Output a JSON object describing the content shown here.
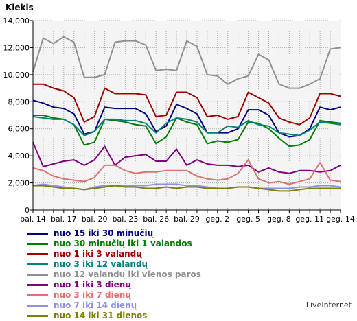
{
  "chart_data": {
    "type": "line",
    "ylabel": "Kiekis",
    "ylim": [
      0,
      14000
    ],
    "yticks": [
      "0",
      "2,000",
      "4,000",
      "6,000",
      "8,000",
      "10,000",
      "12,000",
      "14,000"
    ],
    "x": [
      "bal. 14",
      "bal. 15",
      "bal. 16",
      "bal. 17",
      "bal. 18",
      "bal. 19",
      "bal. 20",
      "bal. 21",
      "bal. 22",
      "bal. 23",
      "bal. 24",
      "bal. 25",
      "bal. 26",
      "bal. 27",
      "bal. 28",
      "bal. 29",
      "bal. 30",
      "geg. 1",
      "geg. 2",
      "geg. 3",
      "geg. 4",
      "geg. 5",
      "geg. 6",
      "geg. 7",
      "geg. 8",
      "geg. 9",
      "geg. 10",
      "geg. 11",
      "geg. 12",
      "geg. 13",
      "geg. 14"
    ],
    "xtick_labels": [
      "bal. 14",
      "bal. 17",
      "bal. 20",
      "bal. 23",
      "bal. 26",
      "bal. 29",
      "geg. 2",
      "geg. 5",
      "geg. 8",
      "geg. 11",
      "geg. 14"
    ],
    "grid": true,
    "legend_position": "bottom",
    "series": [
      {
        "name": "nuo 15 iki 30 minučių",
        "color": "#000080",
        "values": [
          8100,
          7900,
          7600,
          7500,
          7100,
          5600,
          5800,
          7600,
          7500,
          7500,
          7500,
          7100,
          5800,
          6200,
          7800,
          7500,
          7100,
          5700,
          5700,
          5700,
          6000,
          7400,
          7400,
          7000,
          5700,
          5400,
          5500,
          6000,
          7600,
          7400,
          7600
        ]
      },
      {
        "name": "nuo 30 minučių iki 1 valandos",
        "color": "#008000",
        "values": [
          7000,
          7000,
          6800,
          6700,
          6300,
          4800,
          5000,
          6700,
          6600,
          6500,
          6300,
          6200,
          4900,
          5400,
          6800,
          6500,
          6300,
          4900,
          5100,
          5000,
          5200,
          6500,
          6400,
          6000,
          5300,
          4700,
          4800,
          5200,
          6600,
          6500,
          6400
        ]
      },
      {
        "name": "nuo 1 iki 3 valandų",
        "color": "#a00000",
        "values": [
          9300,
          9300,
          9000,
          8800,
          8300,
          6500,
          6900,
          9000,
          8600,
          8600,
          8600,
          8500,
          6900,
          7000,
          8700,
          8700,
          8300,
          6900,
          7000,
          6700,
          6900,
          8700,
          8300,
          7900,
          6800,
          6500,
          6300,
          6800,
          8600,
          8600,
          8400
        ]
      },
      {
        "name": "nuo 3 iki 12 valandų",
        "color": "#008080",
        "values": [
          6900,
          6800,
          6700,
          6700,
          6300,
          5500,
          5800,
          6700,
          6700,
          6600,
          6600,
          6400,
          5700,
          6400,
          6800,
          6700,
          6500,
          5700,
          5700,
          6200,
          6100,
          6600,
          6300,
          6200,
          5700,
          5600,
          5500,
          5900,
          6500,
          6400,
          6300
        ]
      },
      {
        "name": "nuo 12 valandų iki vienos paros",
        "color": "#909090",
        "values": [
          10200,
          12700,
          12300,
          12800,
          12400,
          9800,
          9800,
          10000,
          12400,
          12500,
          12500,
          12200,
          10300,
          10400,
          10300,
          12500,
          12100,
          10000,
          9900,
          9300,
          9700,
          9900,
          11500,
          11100,
          9300,
          9000,
          9000,
          9300,
          9700,
          11900,
          12000
        ]
      },
      {
        "name": "nuo 1 iki 3 dienų",
        "color": "#800080",
        "values": [
          5000,
          3200,
          3400,
          3600,
          3700,
          3300,
          3700,
          4700,
          3300,
          3900,
          4000,
          4100,
          3600,
          3600,
          4500,
          3300,
          3700,
          3400,
          3300,
          3300,
          3200,
          3300,
          2800,
          3100,
          2800,
          2700,
          2900,
          2900,
          2800,
          2900,
          3300
        ]
      },
      {
        "name": "nuo 3 iki 7 dienų",
        "color": "#e07070",
        "values": [
          3100,
          2900,
          2500,
          2300,
          2200,
          2100,
          2400,
          3300,
          3300,
          2900,
          2700,
          2800,
          2800,
          2900,
          2900,
          2900,
          2500,
          2300,
          2200,
          2300,
          2700,
          3700,
          2300,
          2000,
          2100,
          1900,
          2100,
          2300,
          3500,
          2200,
          2100
        ]
      },
      {
        "name": "nuo 7 iki 14 dienų",
        "color": "#9090e0",
        "values": [
          1800,
          1900,
          1800,
          1700,
          1600,
          1500,
          1700,
          1800,
          1800,
          1800,
          1800,
          1800,
          1900,
          1900,
          1900,
          1800,
          1800,
          1700,
          1600,
          1600,
          1700,
          1700,
          1600,
          1600,
          1600,
          1600,
          1700,
          1700,
          1800,
          1800,
          1700
        ]
      },
      {
        "name": "nuo 14 iki 31 dienos",
        "color": "#808000",
        "values": [
          1800,
          1800,
          1700,
          1600,
          1600,
          1500,
          1600,
          1700,
          1800,
          1700,
          1700,
          1600,
          1600,
          1700,
          1600,
          1700,
          1700,
          1600,
          1600,
          1600,
          1700,
          1700,
          1600,
          1500,
          1400,
          1400,
          1500,
          1600,
          1600,
          1600,
          1600
        ]
      }
    ]
  },
  "branding": {
    "text": "LiveInternet"
  }
}
